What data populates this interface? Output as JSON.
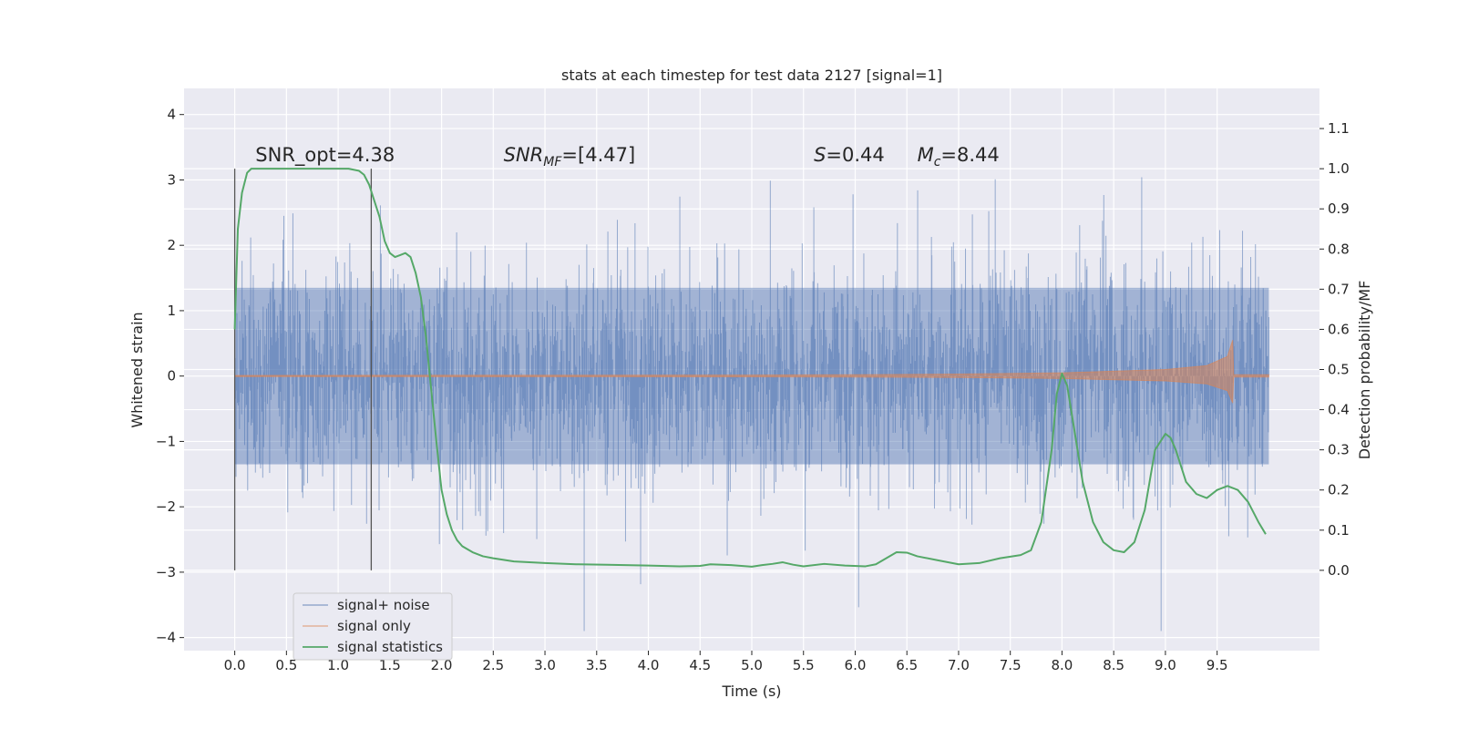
{
  "chart_data": {
    "type": "line",
    "title": "stats at each timestep for test data 2127 [signal=1]",
    "xlabel": "Time (s)",
    "ylabel_left": "Whitened strain",
    "ylabel_right": "Detection probability/MF",
    "xlim": [
      -0.49,
      10.49
    ],
    "ylim_left": [
      -4.2,
      4.4
    ],
    "ylim_right": [
      -0.2,
      1.2
    ],
    "x_ticks": [
      "0.0",
      "0.5",
      "1.0",
      "1.5",
      "2.0",
      "2.5",
      "3.0",
      "3.5",
      "4.0",
      "4.5",
      "5.0",
      "5.5",
      "6.0",
      "6.5",
      "7.0",
      "7.5",
      "8.0",
      "8.5",
      "9.0",
      "9.5"
    ],
    "y_left_ticks": [
      "−4",
      "−3",
      "−2",
      "−1",
      "0",
      "1",
      "2",
      "3",
      "4"
    ],
    "y_right_ticks": [
      "0.0",
      "0.1",
      "0.2",
      "0.3",
      "0.4",
      "0.5",
      "0.6",
      "0.7",
      "0.8",
      "0.9",
      "1.0",
      "1.1"
    ],
    "grid": true,
    "legend_position": "lower-left",
    "annotations": [
      {
        "text": "SNR_opt=4.38",
        "x": 0.2
      },
      {
        "text": "SNR",
        "sub": "MF",
        "rest": "=[4.47]",
        "italic_prefix": true,
        "x": 2.6
      },
      {
        "text": "S",
        "rest": "=0.44",
        "italic_prefix": true,
        "x": 5.6
      },
      {
        "text": "M",
        "sub": "c",
        "rest": "=8.44",
        "italic_prefix": true,
        "x": 6.6
      }
    ],
    "vertical_lines_x": [
      0.0,
      1.32
    ],
    "series": [
      {
        "name": "signal+ noise",
        "color": "#4c72b0",
        "axis": "left",
        "description": "noise strain, roughly ±2 with spikes to ±4, from 0.0 to 10.0 s"
      },
      {
        "name": "signal only",
        "color": "#dd8452",
        "axis": "left",
        "envelope_x": [
          0,
          5,
          6,
          7,
          8,
          9,
          9.4,
          9.6,
          9.65,
          9.66,
          10.0
        ],
        "envelope_y": [
          0.01,
          0.015,
          0.02,
          0.03,
          0.05,
          0.1,
          0.16,
          0.3,
          0.55,
          0.02,
          0.02
        ]
      },
      {
        "name": "signal statistics",
        "color": "#55a868",
        "axis": "right",
        "x": [
          0.0,
          0.03,
          0.07,
          0.12,
          0.16,
          0.25,
          0.4,
          0.6,
          0.9,
          1.1,
          1.2,
          1.25,
          1.3,
          1.35,
          1.4,
          1.45,
          1.5,
          1.55,
          1.6,
          1.65,
          1.7,
          1.75,
          1.8,
          1.85,
          1.9,
          1.95,
          2.0,
          2.05,
          2.1,
          2.15,
          2.2,
          2.3,
          2.4,
          2.5,
          2.7,
          3.0,
          3.3,
          3.6,
          4.0,
          4.3,
          4.5,
          4.6,
          4.8,
          5.0,
          5.1,
          5.2,
          5.3,
          5.4,
          5.5,
          5.7,
          5.9,
          6.1,
          6.2,
          6.3,
          6.4,
          6.5,
          6.6,
          6.8,
          7.0,
          7.2,
          7.4,
          7.6,
          7.7,
          7.8,
          7.9,
          7.95,
          8.0,
          8.05,
          8.1,
          8.2,
          8.3,
          8.4,
          8.5,
          8.6,
          8.7,
          8.8,
          8.9,
          9.0,
          9.05,
          9.1,
          9.2,
          9.3,
          9.4,
          9.5,
          9.6,
          9.7,
          9.8,
          9.9,
          9.97
        ],
        "y": [
          0.6,
          0.85,
          0.94,
          0.99,
          1.0,
          1.0,
          1.0,
          1.0,
          1.0,
          1.0,
          0.995,
          0.985,
          0.96,
          0.92,
          0.88,
          0.82,
          0.79,
          0.78,
          0.785,
          0.79,
          0.78,
          0.74,
          0.68,
          0.58,
          0.45,
          0.32,
          0.2,
          0.14,
          0.1,
          0.075,
          0.06,
          0.045,
          0.035,
          0.03,
          0.022,
          0.018,
          0.015,
          0.014,
          0.012,
          0.01,
          0.011,
          0.015,
          0.013,
          0.009,
          0.013,
          0.016,
          0.02,
          0.014,
          0.01,
          0.016,
          0.012,
          0.01,
          0.015,
          0.03,
          0.045,
          0.044,
          0.035,
          0.025,
          0.015,
          0.018,
          0.03,
          0.038,
          0.05,
          0.12,
          0.3,
          0.44,
          0.49,
          0.46,
          0.38,
          0.22,
          0.12,
          0.07,
          0.05,
          0.045,
          0.07,
          0.15,
          0.3,
          0.34,
          0.33,
          0.3,
          0.22,
          0.19,
          0.18,
          0.2,
          0.21,
          0.2,
          0.17,
          0.12,
          0.09
        ]
      }
    ]
  }
}
